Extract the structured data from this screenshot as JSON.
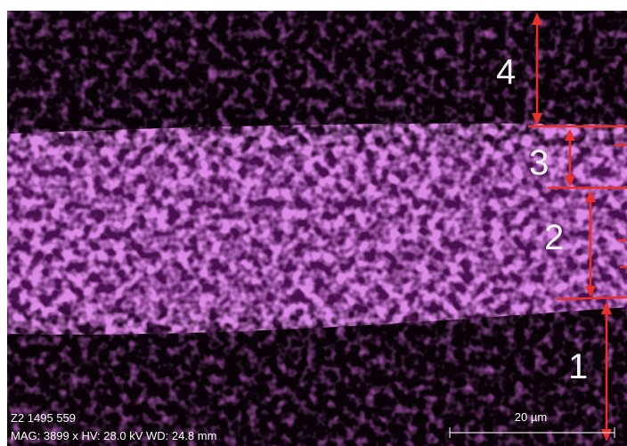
{
  "labels": {
    "region_4": "4",
    "region_3": "3",
    "region_2": "2",
    "region_1": "1"
  },
  "footer": {
    "line1": "Z2 1495 559",
    "line2": "MAG: 3899 x  HV: 28.0 kV  WD: 24.8 mm"
  },
  "scale_bar": {
    "label": "20 µm"
  }
}
